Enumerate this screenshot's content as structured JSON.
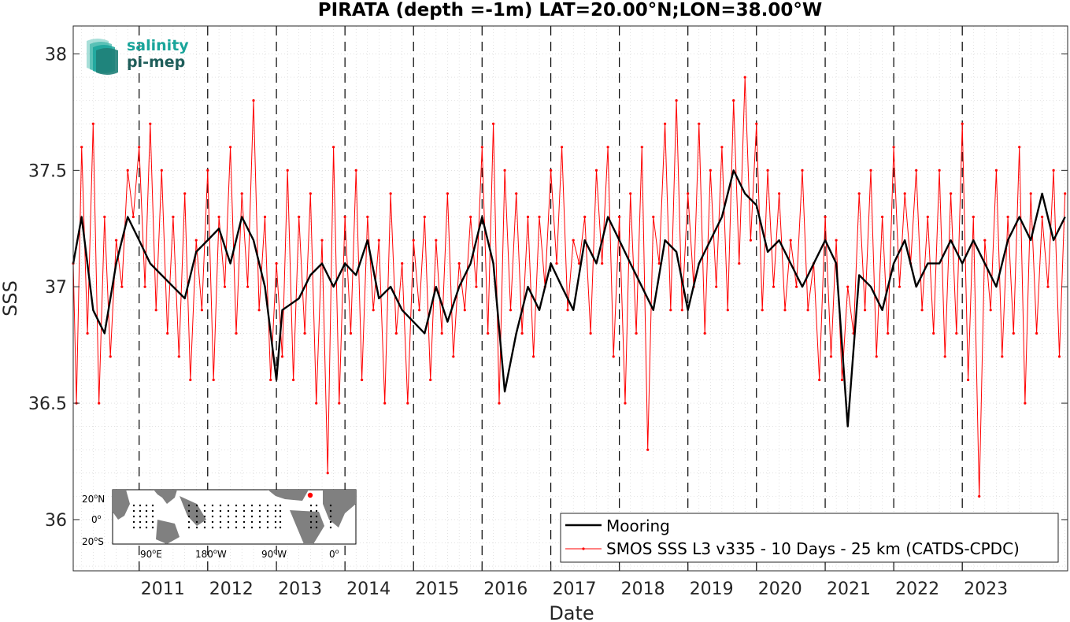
{
  "chart_data": {
    "type": "line",
    "title": "PIRATA (depth =-1m) LAT=20.00°N;LON=38.00°W",
    "xlabel": "Date",
    "ylabel": "SSS",
    "xlim": [
      "2010-01-15",
      "2024-07-15"
    ],
    "ylim": [
      35.78,
      38.12
    ],
    "y_ticks": [
      36,
      36.5,
      37,
      37.5,
      38
    ],
    "y_tick_labels": [
      "36",
      "36.5",
      "37",
      "37.5",
      "38"
    ],
    "x_ticks": [
      "2011-01-01",
      "2012-01-01",
      "2013-01-01",
      "2014-01-01",
      "2015-01-01",
      "2016-01-01",
      "2017-01-01",
      "2018-01-01",
      "2019-01-01",
      "2020-01-01",
      "2021-01-01",
      "2022-01-01",
      "2023-01-01"
    ],
    "x_tick_labels": [
      "2011",
      "2012",
      "2013",
      "2014",
      "2015",
      "2016",
      "2017",
      "2018",
      "2019",
      "2020",
      "2021",
      "2022",
      "2023"
    ],
    "grid": true,
    "legend_position": "bottom-right",
    "series": [
      {
        "name": "Mooring",
        "color": "#000000",
        "x": [
          "2010-01-15",
          "2010-03-01",
          "2010-05-01",
          "2010-07-01",
          "2010-09-01",
          "2010-11-01",
          "2011-01-01",
          "2011-03-01",
          "2011-05-01",
          "2011-07-01",
          "2011-09-01",
          "2011-11-01",
          "2012-01-01",
          "2012-03-01",
          "2012-05-01",
          "2012-07-01",
          "2012-09-01",
          "2012-11-01",
          "2013-01-01",
          "2013-02-01",
          "2013-05-01",
          "2013-07-01",
          "2013-09-01",
          "2013-11-01",
          "2014-01-01",
          "2014-03-01",
          "2014-05-01",
          "2014-07-01",
          "2014-09-01",
          "2014-11-01",
          "2015-03-01",
          "2015-05-01",
          "2015-07-01",
          "2015-09-01",
          "2015-11-01",
          "2016-01-01",
          "2016-03-01",
          "2016-05-01",
          "2016-07-01",
          "2016-09-01",
          "2016-11-01",
          "2017-01-01",
          "2017-03-01",
          "2017-05-01",
          "2017-07-01",
          "2017-09-01",
          "2017-11-01",
          "2018-01-01",
          "2018-03-01",
          "2018-05-01",
          "2018-07-01",
          "2018-09-01",
          "2018-11-01",
          "2019-01-01",
          "2019-03-01",
          "2019-05-01",
          "2019-07-01",
          "2019-09-01",
          "2019-11-01",
          "2020-01-01",
          "2020-03-01",
          "2020-05-01",
          "2020-07-01",
          "2020-09-01",
          "2021-01-01",
          "2021-03-01",
          "2021-05-01",
          "2021-07-01",
          "2021-09-01",
          "2021-11-01",
          "2022-01-01",
          "2022-03-01",
          "2022-05-01",
          "2022-07-01",
          "2022-09-01",
          "2022-11-01",
          "2023-01-01",
          "2023-03-01",
          "2023-05-01",
          "2023-07-01",
          "2023-09-01",
          "2023-11-01",
          "2024-01-01",
          "2024-03-01",
          "2024-05-01",
          "2024-07-01"
        ],
        "values": [
          37.1,
          37.3,
          36.9,
          36.8,
          37.1,
          37.3,
          37.2,
          37.1,
          37.05,
          37.0,
          36.95,
          37.15,
          37.2,
          37.25,
          37.1,
          37.3,
          37.2,
          37.0,
          36.6,
          36.9,
          36.95,
          37.05,
          37.1,
          37.0,
          37.1,
          37.05,
          37.2,
          36.95,
          37.0,
          36.9,
          36.8,
          37.0,
          36.85,
          37.0,
          37.1,
          37.3,
          37.1,
          36.55,
          36.8,
          37.0,
          36.9,
          37.1,
          37.0,
          36.9,
          37.2,
          37.1,
          37.3,
          37.2,
          37.1,
          37.0,
          36.9,
          37.2,
          37.15,
          36.9,
          37.1,
          37.2,
          37.3,
          37.5,
          37.4,
          37.35,
          37.15,
          37.2,
          37.1,
          37.0,
          37.2,
          37.1,
          36.4,
          37.05,
          37.0,
          36.9,
          37.1,
          37.2,
          37.0,
          37.1,
          37.1,
          37.2,
          37.1,
          37.2,
          37.1,
          37.0,
          37.2,
          37.3,
          37.2,
          37.4,
          37.2,
          37.3
        ]
      },
      {
        "name": "SMOS SSS L3 v335 - 10 Days - 25 km (CATDS-CPDC)",
        "color": "#ff0000",
        "x": [
          "2010-01-15",
          "2010-02-01",
          "2010-03-01",
          "2010-04-01",
          "2010-05-01",
          "2010-06-01",
          "2010-07-01",
          "2010-08-01",
          "2010-09-01",
          "2010-10-01",
          "2010-11-01",
          "2010-12-01",
          "2011-01-01",
          "2011-02-01",
          "2011-03-01",
          "2011-04-01",
          "2011-05-01",
          "2011-06-01",
          "2011-07-01",
          "2011-08-01",
          "2011-09-01",
          "2011-10-01",
          "2011-11-01",
          "2011-12-01",
          "2012-01-01",
          "2012-02-01",
          "2012-03-01",
          "2012-04-01",
          "2012-05-01",
          "2012-06-01",
          "2012-07-01",
          "2012-08-01",
          "2012-09-01",
          "2012-10-01",
          "2012-11-01",
          "2012-12-01",
          "2013-01-01",
          "2013-02-01",
          "2013-03-01",
          "2013-04-01",
          "2013-05-01",
          "2013-06-01",
          "2013-07-01",
          "2013-08-01",
          "2013-09-01",
          "2013-10-01",
          "2013-11-01",
          "2013-12-01",
          "2014-01-01",
          "2014-02-01",
          "2014-03-01",
          "2014-04-01",
          "2014-05-01",
          "2014-06-01",
          "2014-07-01",
          "2014-08-01",
          "2014-09-01",
          "2014-10-01",
          "2014-11-01",
          "2014-12-01",
          "2015-01-01",
          "2015-02-01",
          "2015-03-01",
          "2015-04-01",
          "2015-05-01",
          "2015-06-01",
          "2015-07-01",
          "2015-08-01",
          "2015-09-01",
          "2015-10-01",
          "2015-11-01",
          "2015-12-01",
          "2016-01-01",
          "2016-02-01",
          "2016-03-01",
          "2016-04-01",
          "2016-05-01",
          "2016-06-01",
          "2016-07-01",
          "2016-08-01",
          "2016-09-01",
          "2016-10-01",
          "2016-11-01",
          "2016-12-01",
          "2017-01-01",
          "2017-02-01",
          "2017-03-01",
          "2017-04-01",
          "2017-05-01",
          "2017-06-01",
          "2017-07-01",
          "2017-08-01",
          "2017-09-01",
          "2017-10-01",
          "2017-11-01",
          "2017-12-01",
          "2018-01-01",
          "2018-02-01",
          "2018-03-01",
          "2018-04-01",
          "2018-05-01",
          "2018-06-01",
          "2018-07-01",
          "2018-08-01",
          "2018-09-01",
          "2018-10-01",
          "2018-11-01",
          "2018-12-01",
          "2019-01-01",
          "2019-02-01",
          "2019-03-01",
          "2019-04-01",
          "2019-05-01",
          "2019-06-01",
          "2019-07-01",
          "2019-08-01",
          "2019-09-01",
          "2019-10-01",
          "2019-11-01",
          "2019-12-01",
          "2020-01-01",
          "2020-02-01",
          "2020-03-01",
          "2020-04-01",
          "2020-05-01",
          "2020-06-01",
          "2020-07-01",
          "2020-08-01",
          "2020-09-01",
          "2020-10-01",
          "2020-11-01",
          "2020-12-01",
          "2021-01-01",
          "2021-02-01",
          "2021-03-01",
          "2021-04-01",
          "2021-05-01",
          "2021-06-01",
          "2021-07-01",
          "2021-08-01",
          "2021-09-01",
          "2021-10-01",
          "2021-11-01",
          "2021-12-01",
          "2022-01-01",
          "2022-02-01",
          "2022-03-01",
          "2022-04-01",
          "2022-05-01",
          "2022-06-01",
          "2022-07-01",
          "2022-08-01",
          "2022-09-01",
          "2022-10-01",
          "2022-11-01",
          "2022-12-01",
          "2023-01-01",
          "2023-02-01",
          "2023-03-01",
          "2023-04-01",
          "2023-05-01",
          "2023-06-01",
          "2023-07-01",
          "2023-08-01",
          "2023-09-01",
          "2023-10-01",
          "2023-11-01",
          "2023-12-01",
          "2024-01-01",
          "2024-02-01",
          "2024-03-01",
          "2024-04-01",
          "2024-05-01",
          "2024-06-01",
          "2024-07-01"
        ],
        "values": [
          37.1,
          36.5,
          37.6,
          36.8,
          37.7,
          36.5,
          37.3,
          36.7,
          37.2,
          37.0,
          37.5,
          37.3,
          37.6,
          37.0,
          37.7,
          36.9,
          37.5,
          36.8,
          37.3,
          36.7,
          37.4,
          36.6,
          37.2,
          36.9,
          37.5,
          36.6,
          37.3,
          37.0,
          37.6,
          36.8,
          37.4,
          37.0,
          37.8,
          36.9,
          37.3,
          36.6,
          37.1,
          36.7,
          37.5,
          36.6,
          37.3,
          36.8,
          37.4,
          36.5,
          37.2,
          36.2,
          37.6,
          36.5,
          37.3,
          36.8,
          37.5,
          36.6,
          37.3,
          36.9,
          37.2,
          36.5,
          37.4,
          36.8,
          37.1,
          36.5,
          37.2,
          36.9,
          37.3,
          36.6,
          37.2,
          36.8,
          37.4,
          36.7,
          37.1,
          36.9,
          37.3,
          37.0,
          37.6,
          36.8,
          37.7,
          36.5,
          37.5,
          36.9,
          37.4,
          36.8,
          37.3,
          36.7,
          37.3,
          37.0,
          37.5,
          37.1,
          37.6,
          36.9,
          37.2,
          37.1,
          37.3,
          36.8,
          37.5,
          37.1,
          37.6,
          36.7,
          37.3,
          36.5,
          37.4,
          36.8,
          37.6,
          36.3,
          37.3,
          37.1,
          37.7,
          36.9,
          37.8,
          36.9,
          37.4,
          37.0,
          37.7,
          36.8,
          37.5,
          37.0,
          37.6,
          36.9,
          37.8,
          37.1,
          37.9,
          37.2,
          37.7,
          36.9,
          37.5,
          37.0,
          37.4,
          36.9,
          37.2,
          37.0,
          37.5,
          36.9,
          37.1,
          36.6,
          37.3,
          36.7,
          37.2,
          36.6,
          37.0,
          36.8,
          37.4,
          36.9,
          37.5,
          36.7,
          37.3,
          36.8,
          37.6,
          37.0,
          37.4,
          37.1,
          37.5,
          36.9,
          37.3,
          36.8,
          37.5,
          36.7,
          37.4,
          36.8,
          37.7,
          36.6,
          37.3,
          36.1,
          37.2,
          36.9,
          37.5,
          36.7,
          37.3,
          36.8,
          37.6,
          36.5,
          37.4,
          36.8,
          37.3,
          37.0,
          37.5,
          36.7,
          37.4
        ]
      }
    ]
  },
  "legend": {
    "mooring_label": "Mooring",
    "smos_label": "SMOS SSS L3 v335 - 10 Days - 25 km (CATDS-CPDC)"
  },
  "logo": {
    "line1": "salinity",
    "line2": "pi-mep",
    "color_teal": "#1aa59b",
    "color_dark": "#1f5e5a"
  },
  "inset_map": {
    "lat_labels": [
      "20",
      "0",
      "20"
    ],
    "lat_hemispheres": [
      "N",
      "",
      "S"
    ],
    "lon_labels": [
      "90",
      "180",
      "90",
      "0"
    ],
    "lon_hemispheres": [
      "E",
      "W",
      "W",
      ""
    ],
    "degree_symbol": "o",
    "land_color": "#808080",
    "marker_color": "#ff0000"
  },
  "colors": {
    "mooring": "#000000",
    "smos": "#ff0000",
    "grid": "#d0d0d0",
    "year_line": "#000000"
  }
}
